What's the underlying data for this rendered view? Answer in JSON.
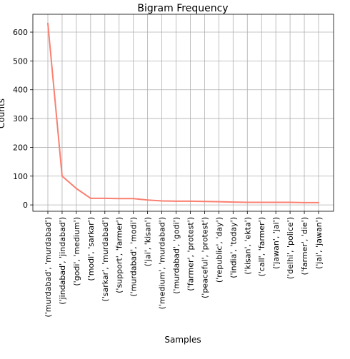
{
  "chart_data": {
    "type": "line",
    "title": "Bigram Frequency",
    "xlabel": "Samples",
    "ylabel": "Counts",
    "categories": [
      "('murdabad', 'murdabad')",
      "('jindabad', 'jindabad')",
      "('godi', 'medium')",
      "('modi', 'sarkar')",
      "('sarkar', 'murdabad')",
      "('support', 'farmer')",
      "('murdabad', 'modi')",
      "('jai', 'kisan')",
      "('medium', 'murdabad')",
      "('murdabad', 'godi')",
      "('farmer', 'protest')",
      "('peaceful', 'protest')",
      "('republic', 'day')",
      "('india', 'today')",
      "('kisan', 'ekta')",
      "('call', 'farmer')",
      "('jawan', 'jai')",
      "('delhi', 'police')",
      "('farmer', 'die')",
      "('jai', 'jawan')"
    ],
    "values": [
      630,
      100,
      57,
      23,
      23,
      22,
      22,
      17,
      14,
      13,
      13,
      12,
      11,
      10,
      9,
      9,
      9,
      9,
      8,
      8
    ],
    "ylim": [
      -22,
      662
    ],
    "yticks": [
      0,
      100,
      200,
      300,
      400,
      500,
      600
    ],
    "grid": true,
    "colors": {
      "line": "#fa8072",
      "grid": "#b0b0b0",
      "axis": "#000000"
    }
  }
}
